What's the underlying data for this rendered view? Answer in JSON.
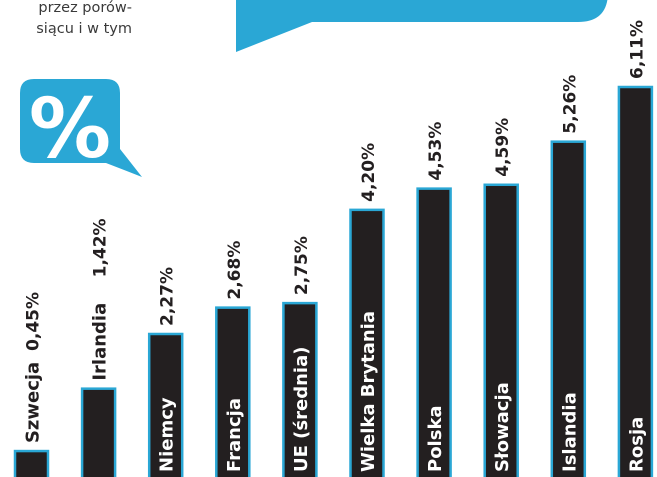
{
  "intro_text": {
    "line1": "przez porów-",
    "line2": "siącu i w tym"
  },
  "percent_badge": {
    "symbol": "%",
    "color": "#2aa7d5"
  },
  "colors": {
    "bar_fill": "#231f20",
    "bar_outline": "#2aa7d5",
    "label_inside": "#ffffff",
    "label_outside": "#231f20",
    "accent": "#2aa7d5"
  },
  "chart_data": {
    "type": "bar",
    "orientation": "vertical",
    "label_rotation": "vertical-bottom-to-top",
    "title": "",
    "xlabel": "",
    "ylabel": "",
    "ylim": [
      0,
      6.11
    ],
    "grid": false,
    "legend": "none",
    "categories": [
      "Szwecja",
      "Irlandia",
      "Niemcy",
      "Francja",
      "UE (średnia)",
      "Wielka Brytania",
      "Polska",
      "Słowacja",
      "Islandia",
      "Rosja"
    ],
    "values": [
      0.45,
      1.42,
      2.27,
      2.68,
      2.75,
      4.2,
      4.53,
      4.59,
      5.26,
      6.11
    ],
    "value_labels": [
      "0,45%",
      "1,42%",
      "2,27%",
      "2,68%",
      "2,75%",
      "4,20%",
      "4,53%",
      "4,59%",
      "5,26%",
      "6,11%"
    ]
  }
}
